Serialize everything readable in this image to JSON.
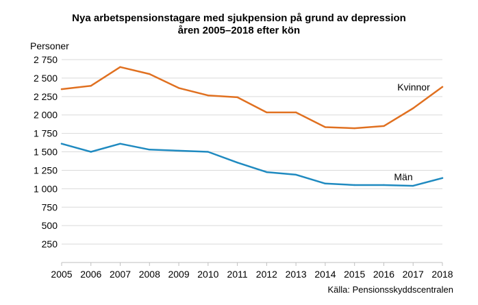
{
  "chart_data": {
    "type": "line",
    "title_lines": [
      "Nya arbetspensionstagare med sjukpension på grund av depression",
      "åren 2005–2018 efter kön"
    ],
    "ylabel": "Personer",
    "xlabel": "",
    "source": "Källa: Pensionsskyddscentralen",
    "x": [
      "2005",
      "2006",
      "2007",
      "2008",
      "2009",
      "2010",
      "2011",
      "2012",
      "2013",
      "2014",
      "2015",
      "2016",
      "2017",
      "2018"
    ],
    "ylim": [
      0,
      2750
    ],
    "yticks": [
      250,
      500,
      750,
      1000,
      1250,
      1500,
      1750,
      2000,
      2250,
      2500,
      2750
    ],
    "ytick_labels": [
      "250",
      "500",
      "750",
      "1 000",
      "1 250",
      "1 500",
      "1 750",
      "2 000",
      "2 250",
      "2 500",
      "2 750"
    ],
    "grid": true,
    "legend": "inline",
    "series": [
      {
        "name": "Kvinnor",
        "color": "#e07020",
        "values": [
          2350,
          2395,
          2650,
          2555,
          2365,
          2265,
          2240,
          2035,
          2035,
          1835,
          1820,
          1850,
          2090,
          2380
        ]
      },
      {
        "name": "Män",
        "color": "#1f8ac0",
        "values": [
          1610,
          1500,
          1610,
          1530,
          1515,
          1500,
          1355,
          1225,
          1190,
          1070,
          1050,
          1050,
          1040,
          1145
        ]
      }
    ]
  }
}
